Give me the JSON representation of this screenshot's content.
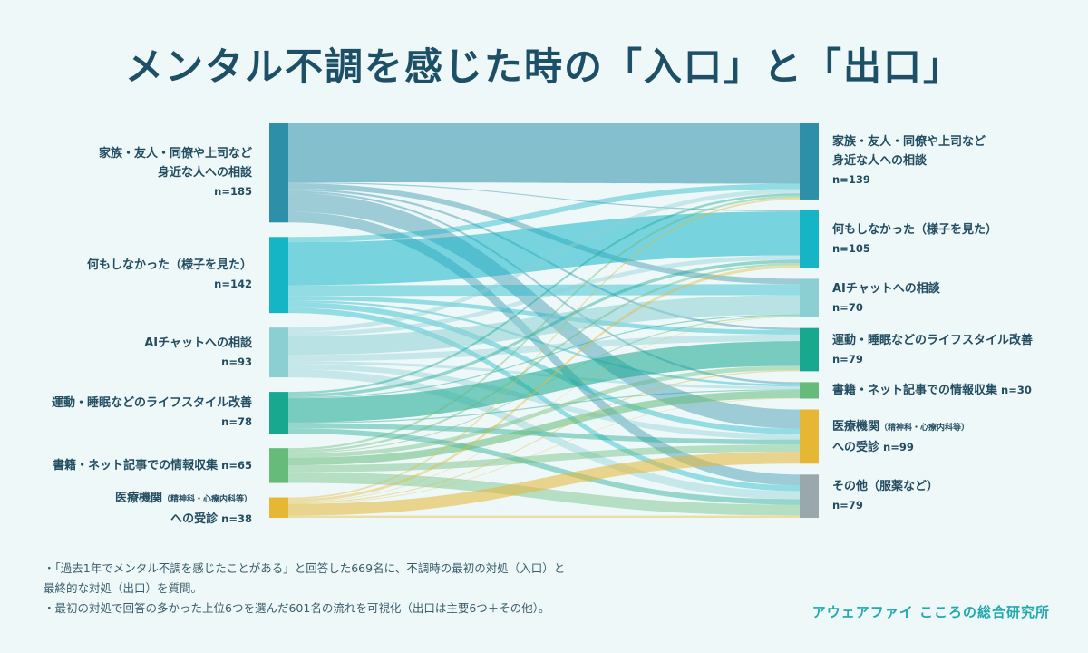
{
  "title": "メンタル不調を感じた時の「入口」と「出口」",
  "chart_data": {
    "type": "sankey",
    "sources": [
      {
        "id": "s_family",
        "line1": "家族・友人・同僚や上司など",
        "line2": "身近な人への相談",
        "n": "n=185",
        "value": 185,
        "color": "#2e8fa9"
      },
      {
        "id": "s_nothing",
        "line1": "何もしなかった（様子を見た）",
        "line2": "",
        "n": "n=142",
        "value": 142,
        "color": "#16b5c6"
      },
      {
        "id": "s_ai",
        "line1": "AIチャットへの相談",
        "line2": "",
        "n": "n=93",
        "value": 93,
        "color": "#8ccfd3"
      },
      {
        "id": "s_life",
        "line1": "運動・睡眠などのライフスタイル改善",
        "line2": "",
        "n": "n=78",
        "value": 78,
        "color": "#17a88f"
      },
      {
        "id": "s_books",
        "line1": "書籍・ネット記事での情報収集",
        "line2": "",
        "n": "n=65",
        "value": 65,
        "color": "#66bb7a",
        "inline_n": true
      },
      {
        "id": "s_medical",
        "line1": "医療機関",
        "line1_sub": "（精神科・心療内科等）",
        "line2": "への受診",
        "n": "n=38",
        "value": 38,
        "color": "#e6b734"
      }
    ],
    "targets": [
      {
        "id": "t_family",
        "line1": "家族・友人・同僚や上司など",
        "line2": "身近な人への相談",
        "n": "n=139",
        "value": 139,
        "color": "#2e8fa9"
      },
      {
        "id": "t_nothing",
        "line1": "何もしなかった（様子を見た）",
        "line2": "",
        "n": "n=105",
        "value": 105,
        "color": "#16b5c6"
      },
      {
        "id": "t_ai",
        "line1": "AIチャットへの相談",
        "line2": "",
        "n": "n=70",
        "value": 70,
        "color": "#8ccfd3"
      },
      {
        "id": "t_life",
        "line1": "運動・睡眠などのライフスタイル改善",
        "line2": "",
        "n": "n=79",
        "value": 79,
        "color": "#17a88f"
      },
      {
        "id": "t_books",
        "line1": "書籍・ネット記事での情報収集",
        "line2": "",
        "n": "n=30",
        "value": 30,
        "color": "#66bb7a",
        "inline_n": true
      },
      {
        "id": "t_medical",
        "line1": "医療機関",
        "line1_sub": "（精神科・心療内科等）",
        "line2": "への受診",
        "n": "n=99",
        "value": 99,
        "color": "#e6b734"
      },
      {
        "id": "t_other",
        "line1": "その他（服薬など）",
        "line2": "",
        "n": "n=79",
        "value": 79,
        "color": "#9aa8ad"
      }
    ],
    "flows": [
      {
        "source": 0,
        "target": 0,
        "value": 110
      },
      {
        "source": 0,
        "target": 1,
        "value": 2
      },
      {
        "source": 0,
        "target": 2,
        "value": 10
      },
      {
        "source": 0,
        "target": 3,
        "value": 4
      },
      {
        "source": 0,
        "target": 4,
        "value": 4
      },
      {
        "source": 0,
        "target": 5,
        "value": 35
      },
      {
        "source": 0,
        "target": 6,
        "value": 20
      },
      {
        "source": 1,
        "target": 0,
        "value": 10
      },
      {
        "source": 1,
        "target": 1,
        "value": 80
      },
      {
        "source": 1,
        "target": 2,
        "value": 20
      },
      {
        "source": 1,
        "target": 3,
        "value": 8
      },
      {
        "source": 1,
        "target": 4,
        "value": 4
      },
      {
        "source": 1,
        "target": 5,
        "value": 10
      },
      {
        "source": 1,
        "target": 6,
        "value": 10
      },
      {
        "source": 2,
        "target": 0,
        "value": 8
      },
      {
        "source": 2,
        "target": 1,
        "value": 8
      },
      {
        "source": 2,
        "target": 2,
        "value": 35
      },
      {
        "source": 2,
        "target": 3,
        "value": 12
      },
      {
        "source": 2,
        "target": 4,
        "value": 5
      },
      {
        "source": 2,
        "target": 5,
        "value": 10
      },
      {
        "source": 2,
        "target": 6,
        "value": 15
      },
      {
        "source": 3,
        "target": 0,
        "value": 4
      },
      {
        "source": 3,
        "target": 1,
        "value": 6
      },
      {
        "source": 3,
        "target": 2,
        "value": 2
      },
      {
        "source": 3,
        "target": 3,
        "value": 45
      },
      {
        "source": 3,
        "target": 4,
        "value": 2
      },
      {
        "source": 3,
        "target": 5,
        "value": 9
      },
      {
        "source": 3,
        "target": 6,
        "value": 10
      },
      {
        "source": 4,
        "target": 0,
        "value": 4
      },
      {
        "source": 4,
        "target": 1,
        "value": 4
      },
      {
        "source": 4,
        "target": 2,
        "value": 2
      },
      {
        "source": 4,
        "target": 3,
        "value": 8
      },
      {
        "source": 4,
        "target": 4,
        "value": 14
      },
      {
        "source": 4,
        "target": 5,
        "value": 13
      },
      {
        "source": 4,
        "target": 6,
        "value": 20
      },
      {
        "source": 5,
        "target": 0,
        "value": 3
      },
      {
        "source": 5,
        "target": 1,
        "value": 5
      },
      {
        "source": 5,
        "target": 2,
        "value": 1
      },
      {
        "source": 5,
        "target": 3,
        "value": 2
      },
      {
        "source": 5,
        "target": 4,
        "value": 1
      },
      {
        "source": 5,
        "target": 5,
        "value": 22
      },
      {
        "source": 5,
        "target": 6,
        "value": 4
      }
    ]
  },
  "notes": [
    "「過去1年でメンタル不調を感じたことがある」と回答した669名に、不調時の最初の対処（入口）と",
    "最終的な対処（出口）を質問。",
    "最初の対処で回答の多かった上位6つを選んだ601名の流れを可視化（出口は主要6つ＋その他）。"
  ],
  "brand": "アウェアファイ こころの総合研究所"
}
